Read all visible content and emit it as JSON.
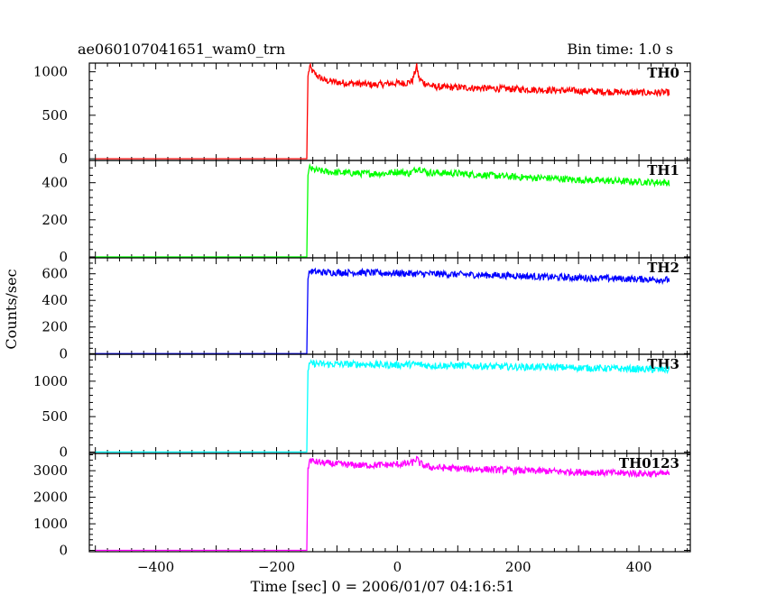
{
  "header": {
    "title": "ae060107041651_wam0_trn",
    "bin_time": "Bin time: 1.0 s"
  },
  "chart_data": {
    "type": "line",
    "xlabel": "Time [sec] 0 = 2006/01/07 04:16:51",
    "ylabel": "Counts/sec",
    "xlim": [
      -510,
      485
    ],
    "xticks": [
      -400,
      -200,
      0,
      200,
      400
    ],
    "grid": false,
    "panels": [
      {
        "name": "TH0",
        "color": "#ff0000",
        "ylim": [
          -20,
          1100
        ],
        "yticks": [
          0,
          500,
          1000
        ],
        "x": [
          -500,
          -150,
          -148,
          -145,
          -140,
          -130,
          -120,
          -100,
          -80,
          -60,
          -40,
          -20,
          0,
          15,
          25,
          32,
          36,
          45,
          60,
          80,
          100,
          150,
          200,
          250,
          300,
          350,
          400,
          450
        ],
        "y": [
          0,
          0,
          950,
          1060,
          1000,
          940,
          900,
          880,
          870,
          860,
          850,
          860,
          870,
          870,
          900,
          1060,
          920,
          870,
          830,
          820,
          820,
          810,
          800,
          790,
          780,
          770,
          760,
          760
        ]
      },
      {
        "name": "TH1",
        "color": "#00ff00",
        "ylim": [
          -5,
          520
        ],
        "yticks": [
          0,
          200,
          400
        ],
        "x": [
          -500,
          -150,
          -148,
          -145,
          -140,
          -120,
          -100,
          -60,
          -20,
          0,
          20,
          35,
          50,
          100,
          150,
          200,
          250,
          300,
          350,
          400,
          450
        ],
        "y": [
          0,
          0,
          440,
          480,
          470,
          460,
          455,
          450,
          450,
          460,
          450,
          480,
          455,
          450,
          440,
          430,
          425,
          415,
          410,
          405,
          400
        ]
      },
      {
        "name": "TH2",
        "color": "#0000ff",
        "ylim": [
          -5,
          720
        ],
        "yticks": [
          0,
          200,
          400,
          600
        ],
        "x": [
          -500,
          -150,
          -148,
          -145,
          -140,
          -120,
          -100,
          -60,
          -20,
          0,
          30,
          50,
          100,
          150,
          200,
          250,
          300,
          350,
          400,
          450
        ],
        "y": [
          0,
          0,
          560,
          620,
          615,
          610,
          610,
          610,
          605,
          605,
          600,
          600,
          595,
          590,
          585,
          575,
          570,
          565,
          560,
          555
        ]
      },
      {
        "name": "TH3",
        "color": "#00ffff",
        "ylim": [
          -20,
          1380
        ],
        "yticks": [
          0,
          500,
          1000
        ],
        "x": [
          -500,
          -150,
          -148,
          -145,
          -140,
          -120,
          -100,
          -60,
          -20,
          0,
          30,
          50,
          100,
          150,
          200,
          250,
          300,
          350,
          400,
          450
        ],
        "y": [
          0,
          0,
          1150,
          1240,
          1250,
          1240,
          1240,
          1240,
          1230,
          1230,
          1240,
          1220,
          1220,
          1210,
          1200,
          1200,
          1190,
          1180,
          1170,
          1160
        ]
      },
      {
        "name": "TH0123",
        "color": "#ff00ff",
        "ylim": [
          -50,
          3650
        ],
        "yticks": [
          0,
          1000,
          2000,
          3000
        ],
        "x": [
          -500,
          -150,
          -148,
          -145,
          -140,
          -120,
          -100,
          -60,
          -20,
          0,
          15,
          25,
          32,
          36,
          45,
          60,
          100,
          150,
          200,
          250,
          300,
          350,
          400,
          450
        ],
        "y": [
          0,
          0,
          3100,
          3400,
          3350,
          3280,
          3250,
          3200,
          3220,
          3240,
          3260,
          3300,
          3460,
          3300,
          3180,
          3120,
          3080,
          3050,
          3000,
          2980,
          2950,
          2920,
          2900,
          2880
        ]
      }
    ]
  }
}
